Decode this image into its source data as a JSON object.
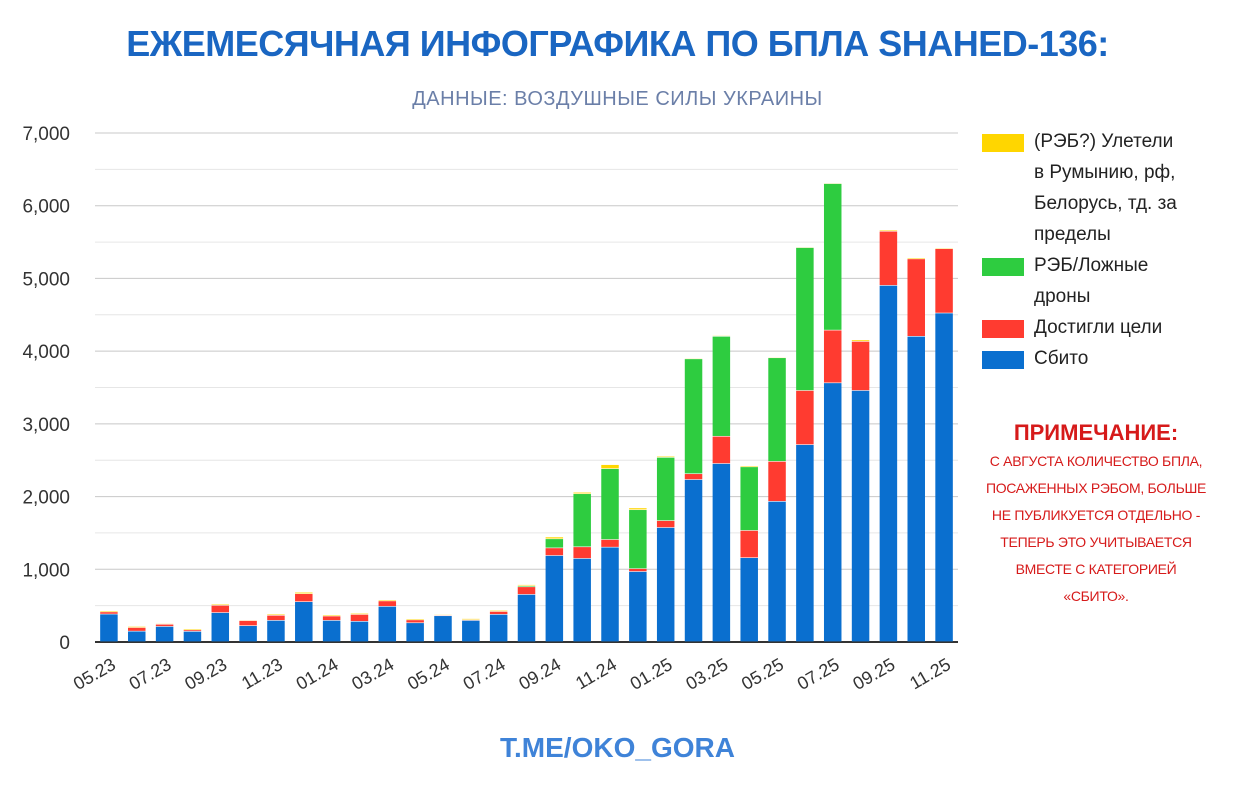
{
  "title": "ЕЖЕМЕСЯЧНАЯ ИНФОГРАФИКА ПО БПЛА SHAHED-136:",
  "subtitle": "ДАННЫЕ: ВОЗДУШНЫЕ СИЛЫ УКРАИНЫ",
  "footer": "T.ME/OKO_GORA",
  "note": {
    "title": "ПРИМЕЧАНИЕ:",
    "lines": [
      "С АВГУСТА КОЛИЧЕСТВО БПЛА,",
      "ПОСАЖЕННЫХ РЭБОМ, БОЛЬШЕ",
      "НЕ ПУБЛИКУЕТСЯ ОТДЕЛЬНО -",
      "ТЕПЕРЬ ЭТО УЧИТЫВАЕТСЯ",
      "ВМЕСТЕ С КАТЕГОРИЕЙ",
      "«СБИТО»."
    ]
  },
  "colors": {
    "yellow": "#ffd600",
    "green": "#2ecc40",
    "red": "#ff3b30",
    "blue": "#0a6fcf",
    "title": "#1a66c2",
    "note": "#d61a1a"
  },
  "chart_data": {
    "type": "bar",
    "stacked": true,
    "ylim": [
      0,
      7000
    ],
    "yticks": [
      "0",
      "1,000",
      "2,000",
      "3,000",
      "4,000",
      "5,000",
      "6,000",
      "7,000"
    ],
    "ytick_values": [
      0,
      1000,
      2000,
      3000,
      4000,
      5000,
      6000,
      7000
    ],
    "grid": true,
    "legend_position": "right",
    "categories": [
      "05.23",
      "06.23",
      "07.23",
      "08.23",
      "09.23",
      "10.23",
      "11.23",
      "12.23",
      "01.24",
      "02.24",
      "03.24",
      "04.24",
      "05.24",
      "06.24",
      "07.24",
      "08.24",
      "09.24",
      "10.24",
      "11.24",
      "12.24",
      "01.25",
      "02.25",
      "03.25",
      "04.25",
      "05.25",
      "06.25",
      "07.25",
      "08.25",
      "09.25",
      "10.25",
      "11.25"
    ],
    "xtick_labels": [
      "05.23",
      "07.23",
      "09.23",
      "11.23",
      "01.24",
      "03.24",
      "05.24",
      "07.24",
      "09.24",
      "11.24",
      "01.25",
      "03.25",
      "05.25",
      "07.25",
      "09.25",
      "11.25"
    ],
    "series": [
      {
        "name": "Сбито",
        "color": "#0a6fcf",
        "values": [
          380,
          145,
          210,
          142,
          400,
          220,
          293,
          550,
          293,
          280,
          486,
          260,
          357,
          293,
          376,
          650,
          1185,
          1145,
          1300,
          965,
          1570,
          2230,
          2450,
          1155,
          1930,
          2710,
          3560,
          3455,
          4900,
          4200,
          4520
        ]
      },
      {
        "name": "Достигли цели",
        "color": "#ff3b30",
        "values": [
          30,
          50,
          30,
          20,
          100,
          70,
          70,
          110,
          60,
          95,
          75,
          40,
          10,
          10,
          40,
          105,
          105,
          160,
          105,
          40,
          95,
          80,
          375,
          375,
          550,
          745,
          725,
          675,
          745,
          1065,
          885
        ]
      },
      {
        "name": "РЭБ/Ложные дроны",
        "color": "#2ecc40",
        "values": [
          0,
          0,
          0,
          0,
          0,
          0,
          0,
          0,
          0,
          0,
          0,
          0,
          0,
          0,
          0,
          15,
          125,
          730,
          975,
          810,
          870,
          1580,
          1375,
          875,
          1425,
          1965,
          2015,
          0,
          0,
          0,
          0
        ]
      },
      {
        "name": "(РЭБ?) Улетели в Румынию, рф, Белорусь, тд. за пределы",
        "color": "#ffd600",
        "values": [
          15,
          15,
          10,
          15,
          15,
          10,
          15,
          20,
          15,
          15,
          15,
          15,
          10,
          15,
          15,
          15,
          25,
          20,
          55,
          25,
          15,
          10,
          10,
          15,
          10,
          10,
          10,
          20,
          15,
          15,
          12
        ]
      }
    ],
    "legend_order": [
      "(РЭБ?) Улетели в Румынию, рф, Белорусь, тд. за пределы",
      "РЭБ/Ложные дроны",
      "Достигли цели",
      "Сбито"
    ],
    "legend_lines": [
      [
        "(РЭБ?) Улетели",
        "в Румынию, рф,",
        "Белорусь, тд. за",
        "пределы"
      ],
      [
        "РЭБ/Ложные",
        "дроны"
      ],
      [
        "Достигли цели"
      ],
      [
        "Сбито"
      ]
    ]
  }
}
